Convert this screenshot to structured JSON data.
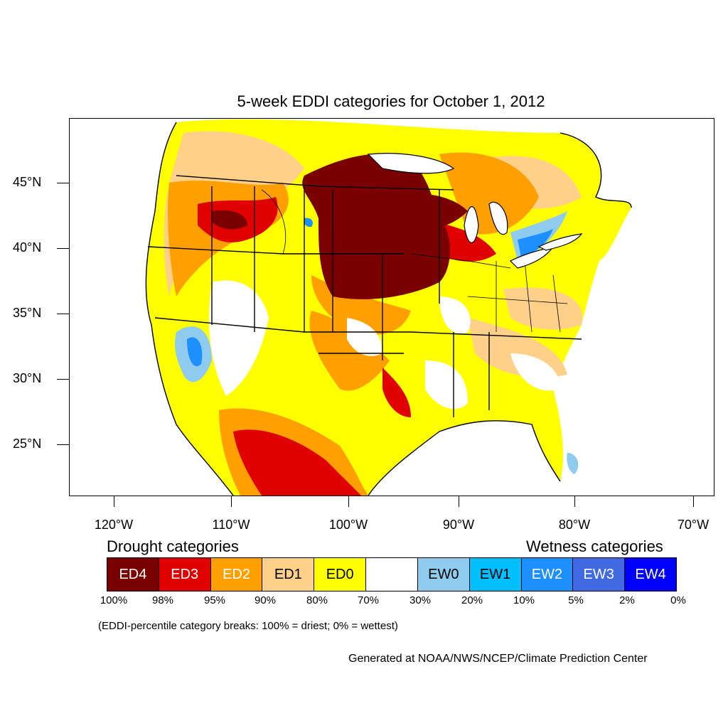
{
  "map": {
    "title": "5-week EDDI categories for October 1, 2012",
    "lat_labels": [
      "45°N",
      "40°N",
      "35°N",
      "30°N",
      "25°N"
    ],
    "lon_labels": [
      "120°W",
      "110°W",
      "100°W",
      "90°W",
      "80°W",
      "70°W"
    ]
  },
  "legend": {
    "drought_heading": "Drought categories",
    "wetness_heading": "Wetness categories",
    "categories": [
      {
        "label": "ED4",
        "color": "#7a0000",
        "text_color": "#ffffff"
      },
      {
        "label": "ED3",
        "color": "#e00000",
        "text_color": "#ffffff"
      },
      {
        "label": "ED2",
        "color": "#ffa000",
        "text_color": "#ffffff"
      },
      {
        "label": "ED1",
        "color": "#ffd08a",
        "text_color": "#000000"
      },
      {
        "label": "ED0",
        "color": "#ffff00",
        "text_color": "#000000"
      },
      {
        "label": "",
        "color": "#ffffff",
        "text_color": "#000000"
      },
      {
        "label": "EW0",
        "color": "#8ecbee",
        "text_color": "#000000"
      },
      {
        "label": "EW1",
        "color": "#00bfff",
        "text_color": "#000000"
      },
      {
        "label": "EW2",
        "color": "#1e8fff",
        "text_color": "#ffffff"
      },
      {
        "label": "EW3",
        "color": "#4169e1",
        "text_color": "#ffffff"
      },
      {
        "label": "EW4",
        "color": "#0000ff",
        "text_color": "#ffffff"
      }
    ],
    "percentiles": [
      "100%",
      "98%",
      "95%",
      "90%",
      "80%",
      "70%",
      "30%",
      "20%",
      "10%",
      "5%",
      "2%",
      "0%"
    ],
    "note": "(EDDI-percentile category breaks: 100% = driest; 0% = wettest)"
  },
  "credit": "Generated at NOAA/NWS/NCEP/Climate Prediction Center"
}
